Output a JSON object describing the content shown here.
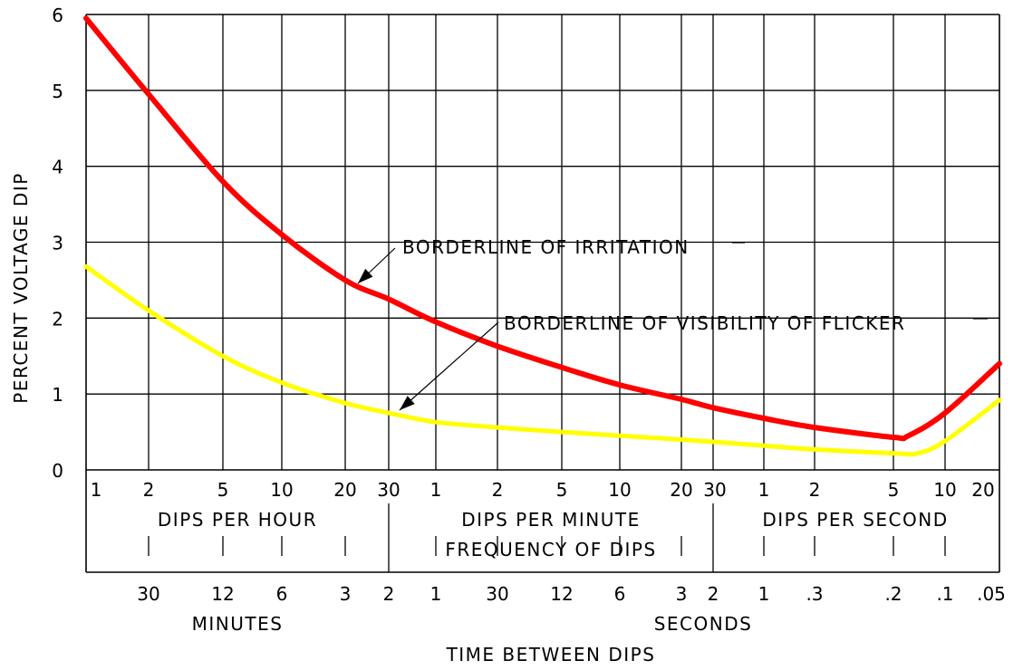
{
  "chart_data": {
    "type": "line",
    "title": "",
    "ylabel": "PERCENT VOLTAGE DIP",
    "xlabel": "TIME BETWEEN DIPS",
    "ylim": [
      0,
      6
    ],
    "yticks": [
      "0",
      "1",
      "2",
      "3",
      "4",
      "5",
      "6"
    ],
    "grid": true,
    "x_axis_rows": {
      "frequency": {
        "title": "FREQUENCY OF DIPS",
        "ticks": [
          "1",
          "2",
          "5",
          "10",
          "20",
          "30",
          "1",
          "2",
          "5",
          "10",
          "20",
          "30",
          "1",
          "2",
          "5",
          "10",
          "20"
        ],
        "group_labels": [
          "DIPS PER HOUR",
          "DIPS PER MINUTE",
          "DIPS PER SECOND"
        ]
      },
      "time_between": {
        "title": "TIME BETWEEN DIPS",
        "ticks": [
          "30",
          "12",
          "6",
          "3",
          "2",
          "1",
          "30",
          "12",
          "6",
          "3",
          "2",
          "1",
          ".3",
          ".2",
          ".1",
          ".05"
        ],
        "group_labels": [
          "MINUTES",
          "SECONDS"
        ]
      }
    },
    "x_frequency_per_hour": [
      1,
      2,
      5,
      10,
      20,
      30,
      60,
      120,
      300,
      600,
      1200,
      1800,
      3600,
      7200,
      18000,
      36000,
      72000
    ],
    "series": [
      {
        "name": "BORDERLINE OF IRRITATION",
        "color": "#ff0000",
        "x": [
          1,
          2,
          5,
          10,
          20,
          30,
          60,
          120,
          300,
          600,
          1200,
          1800,
          3600,
          7200,
          18000,
          22000,
          36000,
          72000
        ],
        "y": [
          5.95,
          4.95,
          3.8,
          3.1,
          2.5,
          2.25,
          1.95,
          1.63,
          1.35,
          1.12,
          0.93,
          0.82,
          0.68,
          0.56,
          0.43,
          0.45,
          0.75,
          1.4
        ]
      },
      {
        "name": "BORDERLINE OF VISIBILITY OF FLICKER",
        "color": "#ffff00",
        "x": [
          1,
          2,
          5,
          10,
          20,
          30,
          60,
          120,
          300,
          600,
          1200,
          1800,
          3600,
          7200,
          18000,
          25000,
          36000,
          72000
        ],
        "y": [
          2.68,
          2.1,
          1.5,
          1.15,
          0.88,
          0.75,
          0.63,
          0.56,
          0.5,
          0.45,
          0.4,
          0.37,
          0.32,
          0.27,
          0.22,
          0.22,
          0.38,
          0.92
        ]
      }
    ]
  }
}
